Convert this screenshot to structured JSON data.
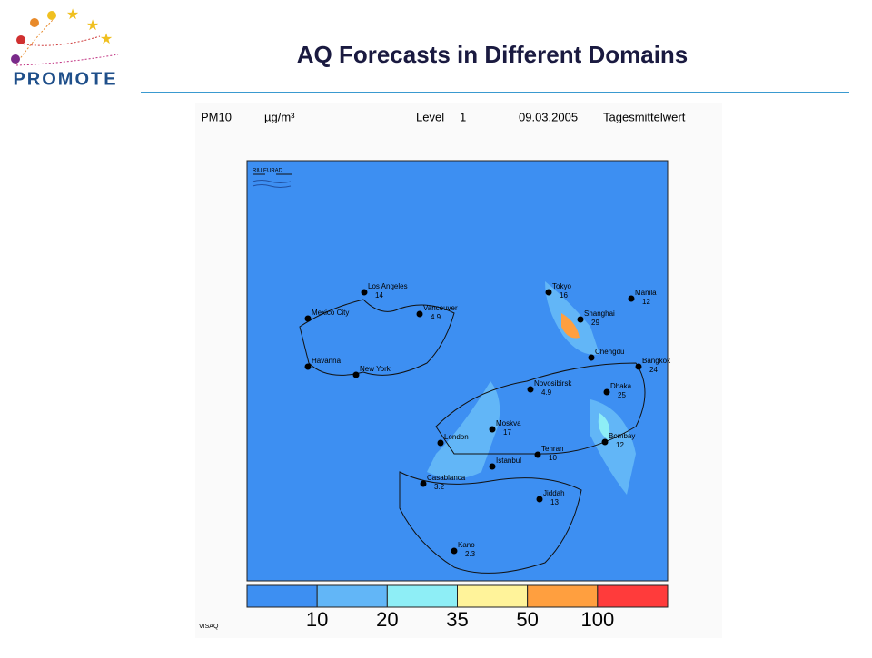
{
  "logo": {
    "text": "PROMOTE"
  },
  "header": {
    "title": "AQ Forecasts in Different Domains"
  },
  "map": {
    "variable": "PM10",
    "unit": "µg/m³",
    "level_label": "Level",
    "level": "1",
    "date": "09.03.2005",
    "period": "Tagesmittelwert",
    "badge": "RIU EURAD",
    "footer": "VISAQ",
    "legend": {
      "colors": [
        "#3d8ff2",
        "#62b6f7",
        "#8eeef6",
        "#fff39a",
        "#ff9f3f",
        "#ff3b3b"
      ],
      "thresholds": [
        10,
        20,
        35,
        50,
        100
      ]
    },
    "cities": [
      {
        "name": "Los Angeles",
        "value": 14
      },
      {
        "name": "Vancouver",
        "value": 4.9
      },
      {
        "name": "Mexico City"
      },
      {
        "name": "Havanna"
      },
      {
        "name": "New York"
      },
      {
        "name": "Tokyo",
        "value": 16
      },
      {
        "name": "Shanghai",
        "value": 29
      },
      {
        "name": "Manila",
        "value": 12
      },
      {
        "name": "Chengdu"
      },
      {
        "name": "Bangkok",
        "value": 24
      },
      {
        "name": "Dhaka",
        "value": 25
      },
      {
        "name": "Bombay",
        "value": 12
      },
      {
        "name": "Novosibirsk",
        "value": 4.9
      },
      {
        "name": "Moskva",
        "value": 17
      },
      {
        "name": "Tehran",
        "value": 10
      },
      {
        "name": "Istanbul"
      },
      {
        "name": "London"
      },
      {
        "name": "Casablanca",
        "value": 3.2
      },
      {
        "name": "Jiddah",
        "value": 13
      },
      {
        "name": "Kano",
        "value": 2.3
      }
    ]
  }
}
